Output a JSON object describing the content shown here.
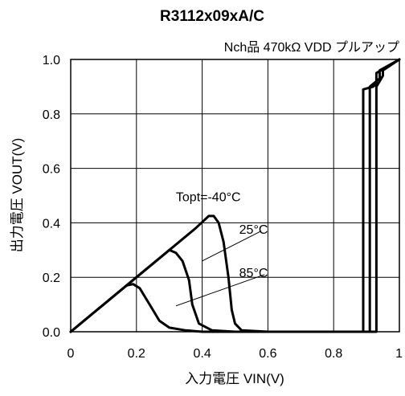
{
  "chart_data": {
    "type": "line",
    "title": "R3112x09xA/C",
    "subtitle": "Nch品 470kΩ VDD プルアップ",
    "xlabel": "入力電圧 VIN(V)",
    "ylabel": "出力電圧 VOUT(V)",
    "xlim": [
      0,
      1.0
    ],
    "ylim": [
      0,
      1.0
    ],
    "x_ticks": [
      "0",
      "0.2",
      "0.4",
      "0.6",
      "0.8",
      "1"
    ],
    "y_ticks": [
      "0.0",
      "0.2",
      "0.4",
      "0.6",
      "0.8",
      "1.0"
    ],
    "grid": true,
    "annotations": [
      "Topt=-40°C",
      "25°C",
      "85°C"
    ],
    "series": [
      {
        "name": "Topt=-40°C",
        "x": [
          0.0,
          0.1,
          0.2,
          0.3,
          0.38,
          0.42,
          0.435,
          0.45,
          0.465,
          0.48,
          0.49,
          0.5,
          0.52,
          0.6,
          0.8,
          0.93,
          0.93,
          0.94,
          0.95,
          0.95,
          1.0
        ],
        "y": [
          0.0,
          0.1,
          0.2,
          0.3,
          0.38,
          0.425,
          0.425,
          0.4,
          0.33,
          0.2,
          0.08,
          0.03,
          0.005,
          0.0,
          0.0,
          0.0,
          0.9,
          0.92,
          0.94,
          0.96,
          1.0
        ]
      },
      {
        "name": "25°C",
        "x": [
          0.0,
          0.1,
          0.2,
          0.28,
          0.3,
          0.32,
          0.34,
          0.36,
          0.37,
          0.39,
          0.43,
          0.5,
          0.8,
          0.91,
          0.91,
          0.93,
          0.94,
          0.94,
          1.0
        ],
        "y": [
          0.0,
          0.1,
          0.2,
          0.28,
          0.3,
          0.29,
          0.26,
          0.19,
          0.1,
          0.03,
          0.005,
          0.0,
          0.0,
          0.0,
          0.9,
          0.92,
          0.93,
          0.96,
          1.0
        ]
      },
      {
        "name": "85°C",
        "x": [
          0.0,
          0.1,
          0.17,
          0.19,
          0.21,
          0.24,
          0.27,
          0.3,
          0.35,
          0.4,
          0.6,
          0.89,
          0.89,
          0.92,
          0.93,
          0.93,
          1.0
        ],
        "y": [
          0.0,
          0.1,
          0.17,
          0.175,
          0.16,
          0.1,
          0.04,
          0.015,
          0.005,
          0.0,
          0.0,
          0.0,
          0.89,
          0.9,
          0.91,
          0.95,
          1.0
        ]
      }
    ]
  }
}
